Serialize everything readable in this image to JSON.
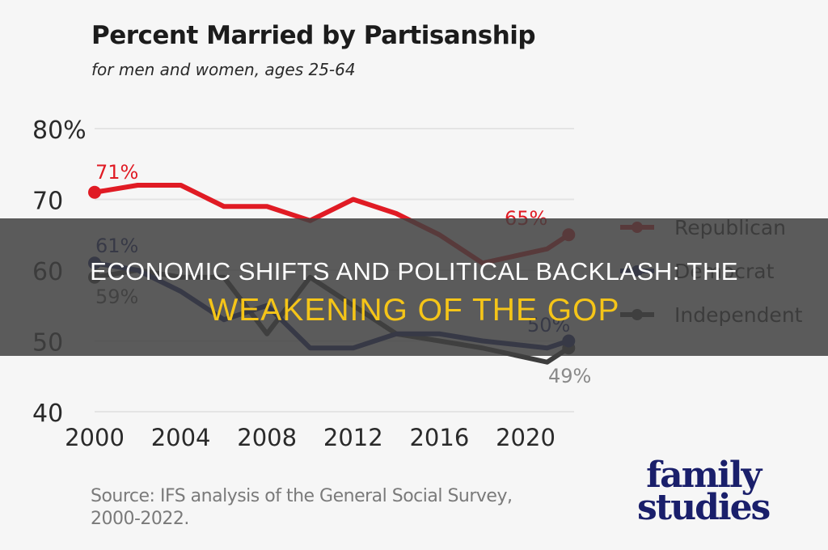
{
  "chart_title": "Percent Married by Partisanship",
  "chart_subtitle": "for men and women, ages 25-64",
  "source": "Source: IFS analysis of the General Social Survey, 2000-2022.",
  "logo": {
    "line1": "family",
    "line2": "studies"
  },
  "banner": {
    "line1": "ECONOMIC SHIFTS AND POLITICAL BACKLASH: THE",
    "line2": "WEAKENING OF THE GOP"
  },
  "colors": {
    "republican": "#e01b24",
    "democrat": "#0d1a6b",
    "independent": "#3d3d3d",
    "independent_end": "#8a8a8a",
    "banner_accent": "#f5c518"
  },
  "chart_data": {
    "type": "line",
    "title": "Percent Married by Partisanship",
    "subtitle": "for men and women, ages 25-64",
    "xlabel": "",
    "ylabel": "",
    "ylim": [
      40,
      80
    ],
    "y_ticks": [
      "80%",
      "70",
      "60",
      "50",
      "40"
    ],
    "x_ticks": [
      "2000",
      "2004",
      "2008",
      "2012",
      "2016",
      "2020"
    ],
    "grid": true,
    "legend_position": "right",
    "x": [
      2000,
      2002,
      2004,
      2006,
      2008,
      2010,
      2012,
      2014,
      2016,
      2018,
      2021,
      2022
    ],
    "series": [
      {
        "name": "Republican",
        "color": "#e01b24",
        "values": [
          71,
          72,
          72,
          69,
          69,
          67,
          70,
          68,
          65,
          61,
          63,
          65
        ],
        "start_label": "71%",
        "end_label": "65%"
      },
      {
        "name": "Democrat",
        "color": "#0d1a6b",
        "values": [
          61,
          60,
          57,
          53,
          55,
          49,
          49,
          51,
          51,
          50,
          49,
          50
        ],
        "start_label": "61%",
        "end_label": "50%"
      },
      {
        "name": "Independent",
        "color": "#3d3d3d",
        "values": [
          59,
          60,
          59,
          59,
          51,
          59,
          55,
          51,
          50,
          49,
          47,
          49
        ],
        "start_label": "59%",
        "end_label": "49%"
      }
    ]
  }
}
